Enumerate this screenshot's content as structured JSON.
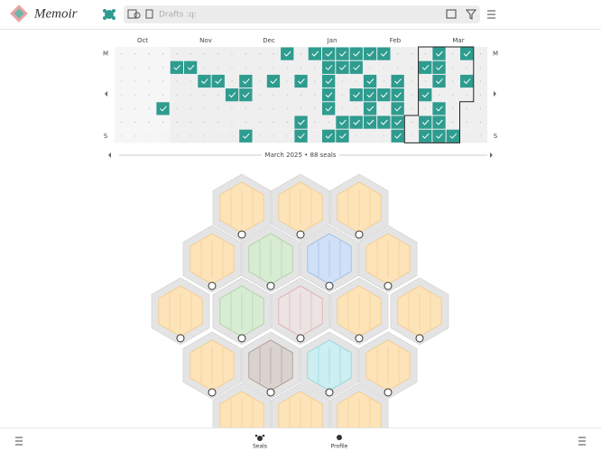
{
  "header": {
    "title": "Memoir",
    "search": "Drafts :q:"
  },
  "calendar": {
    "months": [
      "Oct",
      "Nov",
      "Dec",
      "Jan",
      "Feb",
      "Mar"
    ],
    "row_labels_left": [
      "M",
      "S"
    ],
    "row_labels_right": [
      "M",
      "S"
    ],
    "checked": [
      [
        12,
        14,
        15,
        16,
        17,
        18,
        19,
        23,
        25
      ],
      [
        4,
        5,
        15,
        16,
        17,
        22,
        23
      ],
      [
        6,
        7,
        9,
        11,
        13,
        15,
        18,
        20,
        23,
        25
      ],
      [
        8,
        9,
        15,
        17,
        18,
        19,
        20,
        22
      ],
      [
        3,
        15,
        18,
        20,
        23
      ],
      [
        13,
        16,
        17,
        18,
        19,
        20,
        22,
        23
      ],
      [
        9,
        13,
        15,
        16,
        20,
        22,
        23,
        24
      ]
    ],
    "caption": "March 2025 • 88 seals"
  },
  "nav": {
    "items": [
      "Seals",
      "Profile"
    ]
  }
}
